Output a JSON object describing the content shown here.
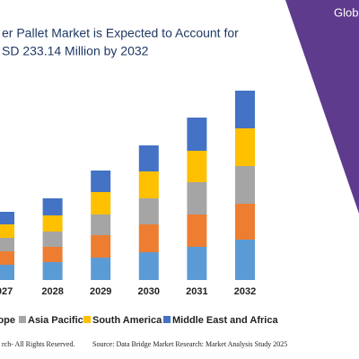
{
  "chart_data": {
    "type": "bar",
    "stacked": true,
    "title_lines": [
      "er Pallet Market is Expected to Account for",
      "SD 233.14 Million by 2032"
    ],
    "categories": [
      "027",
      "2028",
      "2029",
      "2030",
      "2031",
      "2032"
    ],
    "series": [
      {
        "name": null,
        "color": "#5b9bd5",
        "values": [
          17,
          20,
          25,
          31,
          37,
          45
        ]
      },
      {
        "name": "ope",
        "color": "#ed7d31",
        "values": [
          15,
          17,
          25,
          31,
          36,
          40
        ]
      },
      {
        "name": "Asia Pacific",
        "color": "#a5a5a5",
        "values": [
          15,
          17,
          23,
          29,
          36,
          42
        ]
      },
      {
        "name": "South America",
        "color": "#ffc000",
        "values": [
          15,
          18,
          25,
          30,
          35,
          42
        ]
      },
      {
        "name": "Middle East and Africa",
        "color": "#4472c4",
        "values": [
          14,
          19,
          24,
          29,
          37,
          42
        ]
      }
    ]
  },
  "brand": "Glob",
  "footer": {
    "rights": "rch- All Rights Reserved.",
    "source": "Source: Data Bridge Market Research: Market Analysis Study 2025"
  }
}
